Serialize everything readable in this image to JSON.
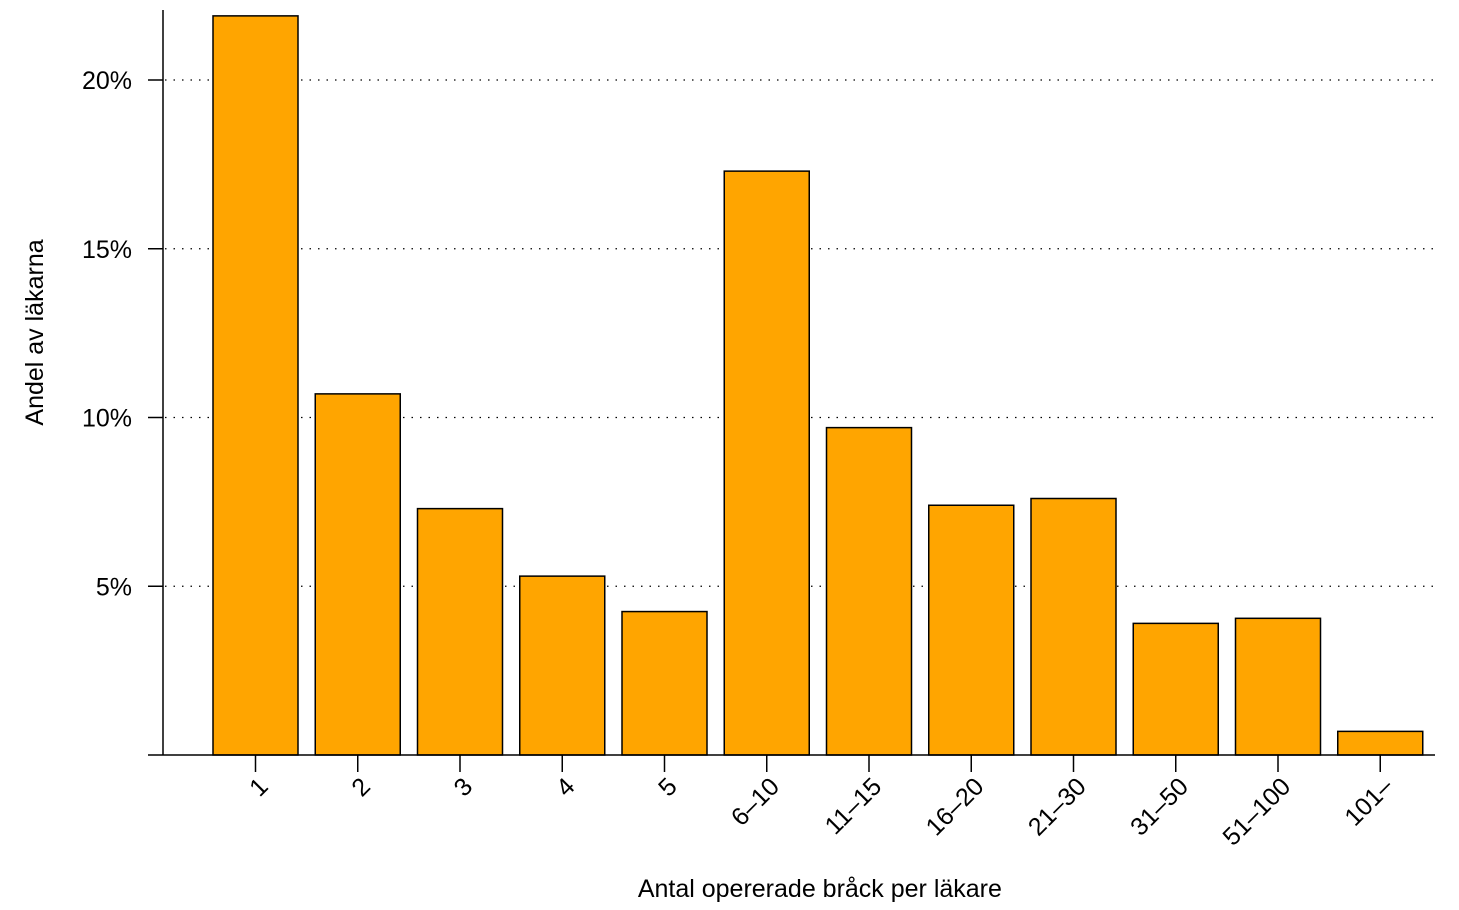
{
  "chart_data": {
    "type": "bar",
    "title": "",
    "xlabel": "Antal opererade bråck per läkare",
    "ylabel": "Andel av läkarna",
    "categories": [
      "1",
      "2",
      "3",
      "4",
      "5",
      "6–10",
      "11–15",
      "16–20",
      "21–30",
      "31–50",
      "51–100",
      "101–"
    ],
    "values": [
      21.9,
      10.7,
      7.3,
      5.3,
      4.25,
      17.3,
      9.7,
      7.4,
      7.6,
      3.9,
      4.05,
      0.7
    ],
    "ylim": [
      0,
      22
    ],
    "yticks": [
      5,
      10,
      15,
      20
    ],
    "ytick_labels": [
      "5%",
      "10%",
      "15%",
      "20%"
    ],
    "grid": "horizontal dotted",
    "bar_color": "#FFA500",
    "legend": "none"
  }
}
